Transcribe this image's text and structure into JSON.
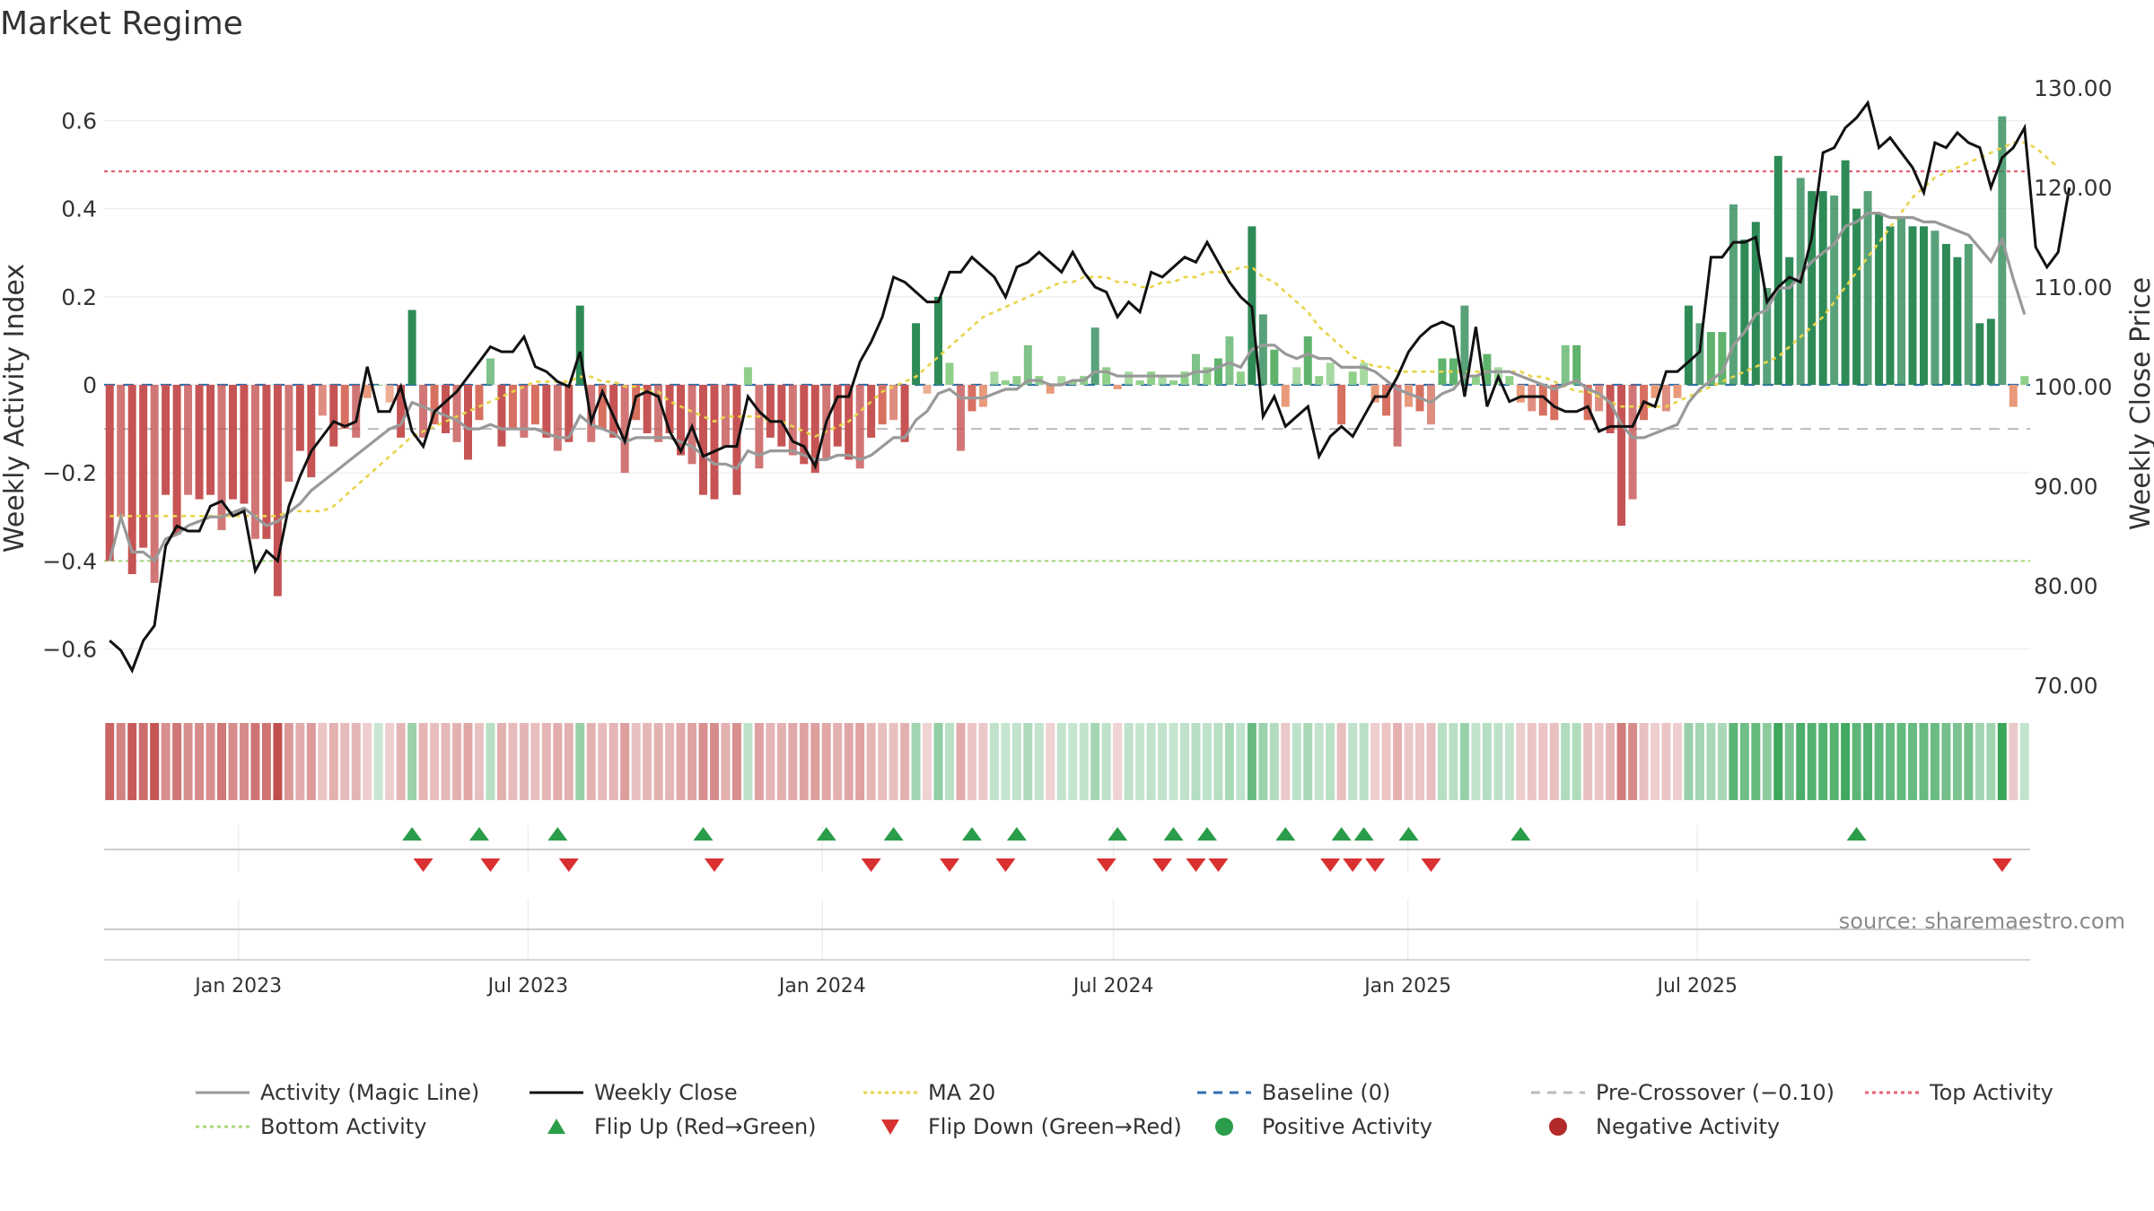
{
  "chart_data": {
    "type": "bar",
    "title": "Market Regime",
    "ylabel_left": "Weekly Activity Index",
    "ylabel_right": "Weekly Close Price",
    "ylim_left": [
      -0.65,
      0.65
    ],
    "yticks_left": [
      "0.6",
      "0.4",
      "0.2",
      "0",
      "−0.2",
      "−0.4",
      "−0.6"
    ],
    "ylim_right": [
      70,
      130
    ],
    "yticks_right": [
      "130.00",
      "120.00",
      "110.00",
      "100.00",
      "90.00",
      "80.00",
      "70.00"
    ],
    "x_start": "2022-10-09",
    "x_step_days": 7,
    "x_ticks": [
      {
        "label": "Jan 2023",
        "date": "2023-01-01"
      },
      {
        "label": "Jul 2023",
        "date": "2023-07-01"
      },
      {
        "label": "Jan 2024",
        "date": "2024-01-01"
      },
      {
        "label": "Jul 2024",
        "date": "2024-07-01"
      },
      {
        "label": "Jan 2025",
        "date": "2025-01-01"
      },
      {
        "label": "Jul 2025",
        "date": "2025-07-01"
      }
    ],
    "top_activity": 0.485,
    "bottom_activity": -0.4,
    "baseline": 0,
    "pre_crossover": -0.1,
    "activity": [
      -0.4,
      -0.3,
      -0.43,
      -0.37,
      -0.45,
      -0.25,
      -0.34,
      -0.25,
      -0.26,
      -0.25,
      -0.33,
      -0.26,
      -0.27,
      -0.35,
      -0.35,
      -0.48,
      -0.22,
      -0.15,
      -0.21,
      -0.07,
      -0.14,
      -0.1,
      -0.12,
      -0.03,
      0.0,
      -0.04,
      -0.12,
      0.17,
      -0.12,
      -0.09,
      -0.11,
      -0.13,
      -0.17,
      -0.08,
      0.06,
      -0.14,
      -0.1,
      -0.12,
      -0.09,
      -0.12,
      -0.15,
      -0.13,
      0.18,
      -0.13,
      -0.1,
      -0.12,
      -0.2,
      -0.08,
      -0.11,
      -0.13,
      -0.11,
      -0.16,
      -0.18,
      -0.25,
      -0.26,
      -0.14,
      -0.25,
      0.04,
      -0.19,
      -0.12,
      -0.14,
      -0.16,
      -0.18,
      -0.2,
      -0.17,
      -0.14,
      -0.17,
      -0.19,
      -0.12,
      -0.09,
      -0.08,
      -0.13,
      0.14,
      -0.02,
      0.2,
      0.05,
      -0.15,
      -0.06,
      -0.05,
      0.03,
      0.01,
      0.02,
      0.09,
      0.02,
      -0.02,
      0.02,
      0.01,
      0.02,
      0.13,
      0.04,
      -0.01,
      0.03,
      0.01,
      0.03,
      0.02,
      0.01,
      0.03,
      0.07,
      0.04,
      0.06,
      0.11,
      0.03,
      0.36,
      0.16,
      0.08,
      -0.05,
      0.04,
      0.11,
      0.02,
      0.05,
      -0.09,
      0.03,
      0.05,
      -0.04,
      -0.07,
      -0.14,
      -0.05,
      -0.06,
      -0.09,
      0.06,
      0.06,
      0.18,
      0.02,
      0.07,
      0.04,
      0.02,
      -0.04,
      -0.06,
      -0.07,
      -0.08,
      0.09,
      0.09,
      -0.08,
      -0.06,
      -0.11,
      -0.32,
      -0.26,
      -0.08,
      -0.03,
      -0.06,
      -0.03,
      0.18,
      0.14,
      0.12,
      0.12,
      0.41,
      0.33,
      0.37,
      0.22,
      0.52,
      0.29,
      0.47,
      0.44,
      0.44,
      0.43,
      0.51,
      0.4,
      0.44,
      0.39,
      0.36,
      0.38,
      0.36,
      0.36,
      0.35,
      0.32,
      0.29,
      0.32,
      0.14,
      0.15,
      0.61,
      -0.05,
      0.02
    ],
    "activity_display": [
      -0.4,
      -0.3,
      -0.43,
      -0.37,
      -0.45,
      -0.25,
      -0.34,
      -0.25,
      -0.26,
      -0.25,
      -0.33,
      -0.26,
      -0.27,
      -0.35,
      -0.35,
      -0.48,
      -0.22,
      -0.15,
      -0.21,
      -0.07,
      -0.14,
      -0.1,
      -0.12,
      -0.03,
      0.0,
      -0.04,
      -0.12,
      0.17,
      -0.12,
      -0.09,
      -0.11,
      -0.13,
      -0.17,
      -0.08,
      0.06,
      -0.14,
      -0.1,
      -0.12,
      -0.09,
      -0.12,
      -0.15,
      -0.13,
      0.18,
      -0.13,
      -0.1,
      -0.12,
      -0.2,
      -0.08,
      -0.11,
      -0.13,
      -0.11,
      -0.16,
      -0.18,
      -0.25,
      -0.26,
      -0.14,
      -0.25,
      0.04,
      -0.19,
      -0.12,
      -0.14,
      -0.16,
      -0.18,
      -0.2,
      -0.17,
      -0.14,
      -0.17,
      -0.19,
      -0.12,
      -0.09,
      -0.08,
      -0.13,
      0.14,
      -0.02,
      0.2,
      0.05,
      -0.15,
      -0.06,
      -0.05,
      0.03,
      0.01,
      0.02,
      0.09,
      0.02,
      -0.02,
      0.02,
      0.01,
      0.02,
      0.13,
      0.04,
      -0.01,
      0.03,
      0.01,
      0.03,
      0.02,
      0.01,
      0.03,
      0.07,
      0.04,
      0.06,
      0.11,
      0.03,
      0.36,
      0.16,
      0.08,
      -0.05,
      0.04,
      0.11,
      0.02,
      0.05,
      -0.09,
      0.03,
      0.05,
      -0.04,
      -0.07,
      -0.14,
      -0.05,
      -0.06,
      -0.09,
      0.06,
      0.06,
      0.18,
      0.02,
      0.07,
      0.04,
      0.02,
      -0.04,
      -0.06,
      -0.07,
      -0.08,
      0.09,
      0.09,
      -0.08,
      -0.06,
      -0.11,
      -0.32,
      -0.26,
      -0.08,
      -0.03,
      -0.06,
      -0.03,
      0.18,
      0.14,
      0.12,
      0.12,
      0.41,
      0.33,
      0.37,
      0.22,
      0.52,
      0.29,
      0.47,
      0.44,
      0.44,
      0.43,
      0.51,
      0.4,
      0.44,
      0.39,
      0.36,
      0.38,
      0.36,
      0.36,
      0.35,
      0.32,
      0.29,
      0.32,
      0.14,
      0.15,
      0.61,
      -0.05,
      0.02
    ],
    "magic_line": [
      -0.4,
      -0.3,
      -0.38,
      -0.38,
      -0.4,
      -0.35,
      -0.34,
      -0.32,
      -0.31,
      -0.3,
      -0.3,
      -0.29,
      -0.28,
      -0.3,
      -0.32,
      -0.31,
      -0.29,
      -0.27,
      -0.24,
      -0.22,
      -0.2,
      -0.18,
      -0.16,
      -0.14,
      -0.12,
      -0.1,
      -0.09,
      -0.04,
      -0.05,
      -0.06,
      -0.07,
      -0.08,
      -0.1,
      -0.1,
      -0.09,
      -0.1,
      -0.1,
      -0.1,
      -0.1,
      -0.11,
      -0.12,
      -0.12,
      -0.07,
      -0.09,
      -0.1,
      -0.11,
      -0.13,
      -0.12,
      -0.12,
      -0.12,
      -0.12,
      -0.13,
      -0.14,
      -0.16,
      -0.18,
      -0.18,
      -0.19,
      -0.15,
      -0.16,
      -0.15,
      -0.15,
      -0.15,
      -0.16,
      -0.17,
      -0.17,
      -0.16,
      -0.16,
      -0.17,
      -0.16,
      -0.14,
      -0.12,
      -0.12,
      -0.08,
      -0.06,
      -0.02,
      -0.01,
      -0.03,
      -0.03,
      -0.03,
      -0.02,
      -0.01,
      -0.01,
      0.01,
      0.01,
      0.0,
      0.0,
      0.01,
      0.01,
      0.03,
      0.03,
      0.02,
      0.02,
      0.02,
      0.02,
      0.02,
      0.02,
      0.02,
      0.03,
      0.03,
      0.04,
      0.05,
      0.04,
      0.08,
      0.09,
      0.09,
      0.07,
      0.06,
      0.07,
      0.06,
      0.06,
      0.04,
      0.04,
      0.04,
      0.03,
      0.01,
      -0.01,
      -0.02,
      -0.03,
      -0.04,
      -0.02,
      -0.01,
      0.02,
      0.02,
      0.03,
      0.03,
      0.03,
      0.02,
      0.01,
      0.0,
      -0.01,
      0.0,
      0.01,
      -0.01,
      -0.02,
      -0.04,
      -0.09,
      -0.12,
      -0.12,
      -0.11,
      -0.1,
      -0.09,
      -0.04,
      -0.01,
      0.01,
      0.03,
      0.09,
      0.12,
      0.16,
      0.17,
      0.22,
      0.22,
      0.25,
      0.28,
      0.3,
      0.32,
      0.36,
      0.37,
      0.39,
      0.39,
      0.38,
      0.38,
      0.38,
      0.37,
      0.37,
      0.36,
      0.35,
      0.34,
      0.31,
      0.28,
      0.33,
      0.24,
      0.16
    ],
    "weekly_close": [
      74.5,
      73.5,
      71.5,
      74.5,
      76.0,
      84.0,
      86.0,
      85.5,
      85.5,
      88.0,
      88.5,
      87.0,
      87.5,
      81.5,
      83.5,
      82.5,
      88.0,
      91.0,
      93.5,
      95.0,
      96.5,
      96.0,
      96.5,
      102.0,
      97.5,
      97.5,
      100.0,
      95.5,
      94.0,
      97.5,
      98.5,
      99.5,
      101.0,
      102.5,
      104.0,
      103.5,
      103.5,
      105.0,
      102.0,
      101.5,
      100.5,
      100.0,
      103.5,
      96.5,
      99.5,
      97.0,
      94.5,
      99.0,
      99.5,
      99.0,
      95.5,
      93.5,
      96.0,
      93.0,
      93.5,
      94.0,
      94.0,
      99.0,
      97.5,
      96.5,
      96.5,
      94.5,
      94.0,
      92.0,
      96.5,
      99.0,
      99.0,
      102.5,
      104.5,
      107.0,
      111.0,
      110.5,
      109.5,
      108.5,
      108.5,
      111.5,
      111.5,
      113.0,
      112.0,
      111.0,
      109.0,
      112.0,
      112.5,
      113.5,
      112.5,
      111.5,
      113.5,
      111.5,
      110.0,
      109.5,
      107.0,
      108.5,
      107.5,
      111.5,
      111.0,
      112.0,
      113.0,
      112.5,
      114.5,
      112.5,
      110.5,
      109.0,
      108.0,
      97.0,
      99.0,
      96.0,
      97.0,
      98.0,
      93.0,
      95.0,
      96.0,
      95.0,
      97.0,
      99.0,
      99.0,
      101.0,
      103.5,
      105.0,
      106.0,
      106.5,
      106.0,
      99.0,
      106.0,
      98.0,
      101.0,
      98.5,
      99.0,
      99.0,
      99.0,
      98.0,
      97.5,
      97.5,
      98.0,
      95.5,
      96.0,
      96.0,
      96.0,
      98.5,
      98.0,
      101.5,
      101.5,
      102.5,
      103.5,
      113.0,
      113.0,
      114.5,
      114.5,
      115.0,
      108.5,
      110.0,
      111.0,
      110.5,
      115.0,
      123.5,
      124.0,
      126.0,
      127.0,
      128.5,
      124.0,
      125.0,
      123.5,
      122.0,
      119.5,
      124.5,
      124.0,
      125.5,
      124.5,
      124.0,
      120.0,
      123.0,
      124.0,
      126.0,
      114.0,
      112.0,
      113.5,
      120.0
    ],
    "ma20": [
      87.0,
      87.0,
      87.0,
      87.0,
      87.0,
      87.0,
      87.0,
      87.0,
      87.0,
      87.0,
      87.0,
      87.0,
      87.0,
      87.0,
      87.0,
      87.0,
      87.5,
      87.5,
      87.5,
      87.5,
      88.0,
      89.0,
      90.0,
      91.0,
      92.0,
      93.0,
      94.0,
      95.0,
      95.5,
      96.0,
      96.5,
      97.0,
      97.5,
      98.0,
      98.5,
      99.0,
      99.5,
      100.0,
      100.5,
      100.5,
      100.5,
      100.5,
      101.0,
      101.0,
      100.5,
      100.5,
      100.0,
      100.0,
      99.5,
      99.5,
      98.5,
      98.0,
      97.5,
      97.0,
      96.5,
      97.0,
      97.0,
      97.0,
      97.0,
      96.5,
      96.5,
      96.0,
      95.5,
      95.0,
      95.5,
      96.0,
      96.5,
      97.5,
      98.5,
      99.5,
      100.0,
      100.5,
      101.0,
      102.0,
      103.0,
      104.0,
      105.0,
      106.0,
      107.0,
      107.5,
      108.0,
      108.5,
      109.0,
      109.5,
      110.0,
      110.5,
      110.5,
      111.0,
      111.0,
      111.0,
      110.5,
      110.5,
      110.0,
      110.0,
      110.5,
      110.5,
      111.0,
      111.0,
      111.5,
      111.5,
      111.5,
      112.0,
      112.0,
      111.0,
      110.5,
      109.5,
      108.5,
      107.5,
      106.0,
      105.0,
      104.0,
      103.0,
      102.5,
      102.0,
      102.0,
      101.5,
      101.5,
      101.5,
      101.5,
      101.5,
      101.5,
      101.5,
      101.5,
      101.5,
      101.5,
      101.5,
      101.5,
      101.0,
      101.0,
      100.5,
      100.0,
      99.5,
      99.5,
      99.0,
      98.5,
      98.0,
      98.0,
      98.0,
      98.0,
      98.0,
      98.5,
      99.0,
      99.5,
      100.0,
      100.5,
      101.0,
      101.5,
      102.0,
      102.5,
      103.0,
      104.0,
      105.0,
      106.0,
      107.0,
      108.5,
      110.0,
      111.5,
      113.0,
      114.5,
      116.0,
      117.5,
      119.0,
      120.0,
      121.0,
      121.5,
      122.0,
      122.5,
      123.0,
      123.5,
      124.0,
      124.5,
      124.5,
      124.0,
      123.0,
      122.0
    ],
    "flip_up_index": [
      27,
      33,
      40,
      53,
      64,
      70,
      77,
      81,
      90,
      95,
      98,
      105,
      110,
      112,
      116,
      126,
      156
    ],
    "flip_down_index": [
      28,
      34,
      41,
      54,
      68,
      75,
      80,
      89,
      94,
      97,
      99,
      109,
      111,
      113,
      118,
      169
    ]
  },
  "legend": [
    {
      "label": "Activity (Magic Line)",
      "kind": "line",
      "color": "#999999",
      "dash": ""
    },
    {
      "label": "Weekly Close",
      "kind": "line",
      "color": "#111111",
      "dash": ""
    },
    {
      "label": "MA 20",
      "kind": "line",
      "color": "#e8d44a",
      "dash": "4,4"
    },
    {
      "label": "Baseline (0)",
      "kind": "line",
      "color": "#2f6fb0",
      "dash": "10,8"
    },
    {
      "label": "Pre-Crossover (−0.10)",
      "kind": "line",
      "color": "#bbbbbb",
      "dash": "10,8"
    },
    {
      "label": "Top Activity",
      "kind": "line",
      "color": "#e8607a",
      "dash": "4,4"
    },
    {
      "label": "Bottom Activity",
      "kind": "line",
      "color": "#a8d878",
      "dash": "4,4"
    },
    {
      "label": "Flip Up (Red→Green)",
      "kind": "tri-up",
      "color": "#2a9d4a",
      "dash": ""
    },
    {
      "label": "Flip Down (Green→Red)",
      "kind": "tri-down",
      "color": "#d93030",
      "dash": ""
    },
    {
      "label": "Positive Activity",
      "kind": "dot",
      "color": "#2a9d4a",
      "dash": ""
    },
    {
      "label": "Negative Activity",
      "kind": "dot",
      "color": "#b22a2a",
      "dash": ""
    }
  ],
  "source": "source: sharemaestro.com",
  "colors": {
    "pos_strong": "#2e8b57",
    "pos_mid": "#5fb36d",
    "pos_light": "#8fcf8a",
    "neg_strong": "#c65454",
    "neg_mid": "#d77060",
    "neg_light": "#e89a7a",
    "close": "#111111",
    "magic": "#999999",
    "ma": "#e8d44a"
  }
}
